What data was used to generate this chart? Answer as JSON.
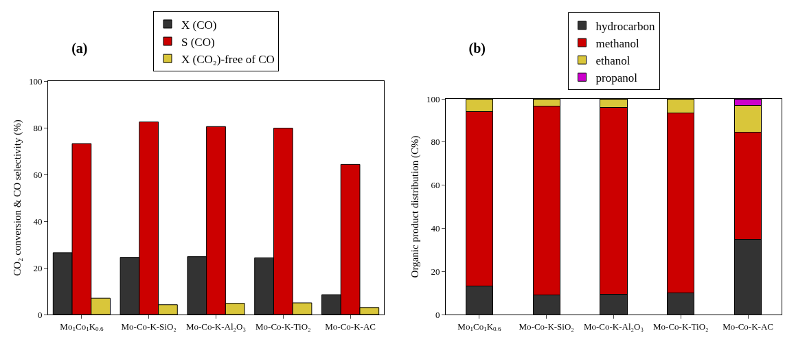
{
  "chart_data": [
    {
      "type": "bar",
      "title": "(a)",
      "ylabel": "CO₂ conversion & CO selectivity (%)",
      "categories": [
        "Mo$_{1}$Co$_{1}$K$_{0.6}$",
        "Mo-Co-K-SiO₂",
        "Mo-Co-K-Al₂O₃",
        "Mo-Co-K-TiO₂",
        "Mo-Co-K-AC"
      ],
      "series": [
        {
          "name": "X (CO)",
          "color": "#333333",
          "values": [
            26.5,
            24.5,
            24.8,
            24.3,
            8.5
          ]
        },
        {
          "name": "S (CO)",
          "color": "#cc0000",
          "values": [
            73.2,
            82.5,
            80.5,
            79.8,
            64.3
          ]
        },
        {
          "name": "X (CO₂)-free of CO",
          "color": "#d9c63a",
          "values": [
            7.0,
            4.2,
            4.8,
            5.0,
            3.0
          ]
        }
      ],
      "ylim": [
        0,
        100
      ],
      "yticks": [
        0,
        20,
        40,
        60,
        80,
        100
      ],
      "grid": false,
      "legend": "top"
    },
    {
      "type": "bar",
      "title": "(b)",
      "ylabel": "Organic product distribution (C%)",
      "categories": [
        "Mo$_{1}$Co$_{1}$K$_{0.6}$",
        "Mo-Co-K-SiO₂",
        "Mo-Co-K-Al₂O₃",
        "Mo-Co-K-TiO₂",
        "Mo-Co-K-AC"
      ],
      "stacked": true,
      "series": [
        {
          "name": "hydrocarbon",
          "color": "#333333",
          "values": [
            13.3,
            9.2,
            9.3,
            10.0,
            34.8
          ]
        },
        {
          "name": "methanol",
          "color": "#cc0000",
          "values": [
            80.8,
            87.4,
            86.7,
            83.6,
            49.6
          ]
        },
        {
          "name": "ethanol",
          "color": "#d9c63a",
          "values": [
            5.9,
            3.4,
            4.0,
            6.4,
            12.6
          ]
        },
        {
          "name": "propanol",
          "color": "#cc00cc",
          "values": [
            null,
            null,
            null,
            null,
            3.0
          ]
        }
      ],
      "ylim": [
        0,
        100
      ],
      "yticks": [
        0,
        20,
        40,
        60,
        80,
        100
      ],
      "grid": false,
      "legend": "top"
    }
  ]
}
